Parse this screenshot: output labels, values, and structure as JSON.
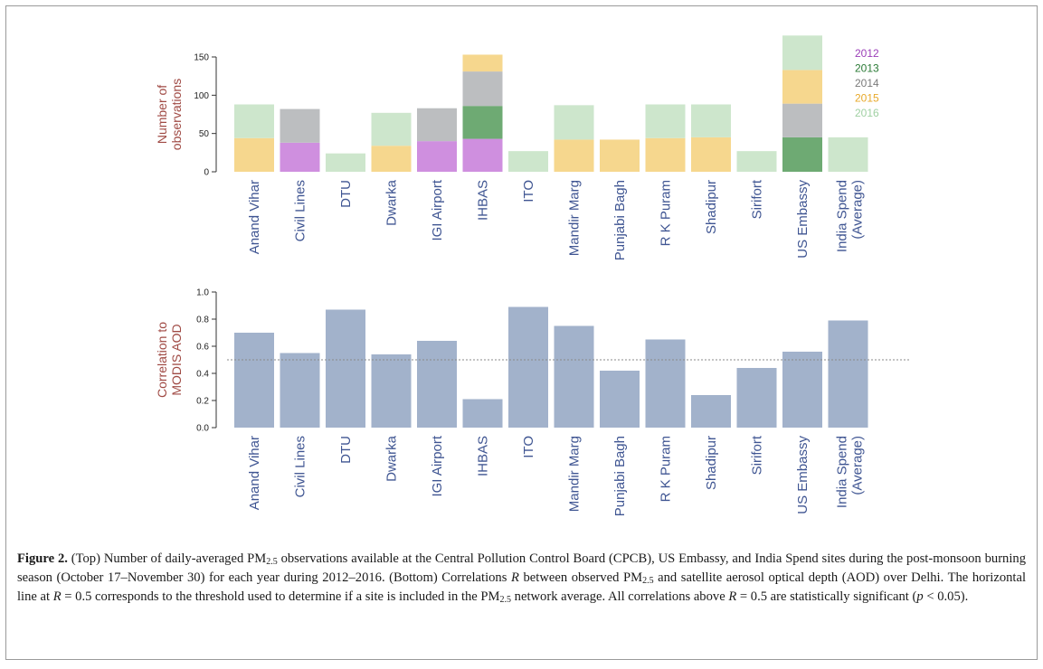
{
  "caption": {
    "label": "Figure 2.",
    "part1": " (Top) Number of daily-averaged PM",
    "sub1": "2.5",
    "part2": " observations available at the Central Pollution Control Board (CPCB), US Embassy, and India Spend sites during the post-monsoon burning season (October 17–November 30) for each year during 2012–2016. (Bottom) Correlations ",
    "var1": "R",
    "part3": " between observed PM",
    "sub2": "2.5",
    "part4": " and satellite aerosol optical depth (AOD) over Delhi. The horizontal line at ",
    "var2": "R",
    "part5": " = 0.5 corresponds to the threshold used to determine if a site is included in the PM",
    "sub3": "2.5",
    "part6": " network average. All correlations above ",
    "var3": "R",
    "part7": " = 0.5 are statistically significant (",
    "var4": "p",
    "part8": " < 0.05)."
  },
  "colors": {
    "2012": "#cf8fdf",
    "2013": "#6eaa73",
    "2014": "#bcbec0",
    "2015": "#f6d78e",
    "2016": "#cde6cc",
    "bar_bottom": "#a2b2cb",
    "ylabel": "#a04a44",
    "xlabel": "#3f5592",
    "legend_2012": "#9b3fb8",
    "legend_2013": "#2a7a35",
    "legend_2014": "#7a7a7a",
    "legend_2015": "#e8a92a",
    "legend_2016": "#9fd0a2"
  },
  "chart_data": [
    {
      "type": "bar",
      "stacked": true,
      "ylabel": "Number of observations",
      "ylim": [
        0,
        180
      ],
      "yticks": [
        0,
        50,
        100,
        150
      ],
      "categories": [
        "Anand Vihar",
        "Civil Lines",
        "DTU",
        "Dwarka",
        "IGI Airport",
        "IHBAS",
        "ITO",
        "Mandir Marg",
        "Punjabi Bagh",
        "R K Puram",
        "Shadipur",
        "Sirifort",
        "US Embassy",
        "India Spend (Average)"
      ],
      "legend_position": "top-right",
      "series": [
        {
          "name": "2012",
          "values": [
            0,
            38,
            0,
            0,
            40,
            43,
            0,
            0,
            0,
            0,
            0,
            0,
            0,
            0
          ]
        },
        {
          "name": "2013",
          "values": [
            0,
            0,
            0,
            0,
            0,
            43,
            0,
            0,
            0,
            0,
            0,
            0,
            45,
            0
          ]
        },
        {
          "name": "2014",
          "values": [
            0,
            44,
            0,
            0,
            43,
            45,
            0,
            0,
            0,
            0,
            0,
            0,
            44,
            0
          ]
        },
        {
          "name": "2015",
          "values": [
            44,
            0,
            0,
            34,
            0,
            22,
            0,
            42,
            42,
            44,
            45,
            0,
            44,
            0
          ]
        },
        {
          "name": "2016",
          "values": [
            44,
            0,
            24,
            43,
            0,
            0,
            27,
            45,
            0,
            44,
            43,
            27,
            45,
            45
          ]
        }
      ]
    },
    {
      "type": "bar",
      "ylabel": "Correlation to MODIS AOD",
      "ylim": [
        0,
        1.0
      ],
      "yticks": [
        "0.0",
        "0.2",
        "0.4",
        "0.6",
        "0.8",
        "1.0"
      ],
      "threshold": 0.5,
      "categories": [
        "Anand Vihar",
        "Civil Lines",
        "DTU",
        "Dwarka",
        "IGI Airport",
        "IHBAS",
        "ITO",
        "Mandir Marg",
        "Punjabi Bagh",
        "R K Puram",
        "Shadipur",
        "Sirifort",
        "US Embassy",
        "India Spend (Average)"
      ],
      "values": [
        0.7,
        0.55,
        0.87,
        0.54,
        0.64,
        0.21,
        0.89,
        0.75,
        0.42,
        0.65,
        0.24,
        0.44,
        0.56,
        0.79
      ]
    }
  ]
}
